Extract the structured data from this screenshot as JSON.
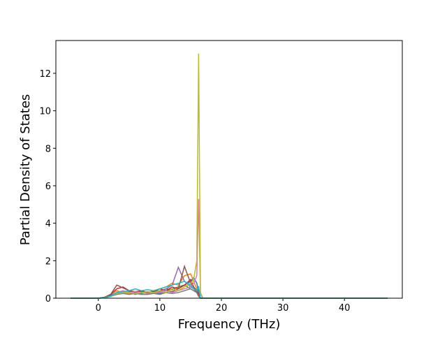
{
  "chart_data": {
    "type": "line",
    "xlabel": "Frequency (THz)",
    "ylabel": "Partial Density of States",
    "x": [
      -4.5,
      0,
      1,
      2,
      3,
      4,
      5,
      6,
      7,
      8,
      9,
      10,
      11,
      12,
      13,
      14,
      15,
      15.5,
      16,
      16.3,
      16.6,
      17,
      47
    ],
    "series": [
      {
        "color": "#1f77b4",
        "values": [
          0,
          0,
          0.05,
          0.15,
          0.3,
          0.35,
          0.3,
          0.25,
          0.3,
          0.35,
          0.3,
          0.25,
          0.4,
          0.5,
          0.6,
          0.7,
          0.9,
          1.1,
          0.8,
          0.3,
          0,
          0,
          0
        ]
      },
      {
        "color": "#ff7f0e",
        "values": [
          0,
          0,
          0.05,
          0.2,
          0.4,
          0.3,
          0.25,
          0.3,
          0.35,
          0.3,
          0.4,
          0.5,
          0.6,
          0.8,
          0.7,
          1.2,
          1.3,
          0.9,
          0.5,
          0.2,
          0,
          0,
          0
        ]
      },
      {
        "color": "#2ca02c",
        "values": [
          0,
          0,
          0.03,
          0.1,
          0.25,
          0.3,
          0.35,
          0.3,
          0.25,
          0.3,
          0.35,
          0.4,
          0.5,
          0.45,
          0.6,
          0.7,
          0.5,
          0.4,
          0.3,
          0.1,
          0,
          0,
          0
        ]
      },
      {
        "color": "#d62728",
        "values": [
          0,
          0,
          0.05,
          0.2,
          0.5,
          0.6,
          0.4,
          0.35,
          0.4,
          0.3,
          0.35,
          0.5,
          0.4,
          0.6,
          0.5,
          0.7,
          1.0,
          0.6,
          0.4,
          0.2,
          0,
          0,
          0
        ]
      },
      {
        "color": "#9467bd",
        "values": [
          0,
          0,
          0.02,
          0.1,
          0.3,
          0.4,
          0.3,
          0.2,
          0.3,
          0.25,
          0.3,
          0.35,
          0.5,
          0.7,
          1.65,
          0.9,
          0.6,
          0.5,
          0.3,
          0.1,
          0,
          0,
          0
        ]
      },
      {
        "color": "#8c564b",
        "values": [
          0,
          0,
          0.05,
          0.2,
          0.7,
          0.55,
          0.4,
          0.3,
          0.35,
          0.3,
          0.25,
          0.3,
          0.4,
          0.35,
          0.5,
          1.7,
          0.8,
          0.6,
          0.3,
          0.1,
          0,
          0,
          0
        ]
      },
      {
        "color": "#e377c2",
        "values": [
          0,
          0,
          0.02,
          0.1,
          0.3,
          0.4,
          0.3,
          0.35,
          0.3,
          0.25,
          0.3,
          0.3,
          0.4,
          0.3,
          0.4,
          0.5,
          0.6,
          0.8,
          1.2,
          5.3,
          0.2,
          0,
          0
        ]
      },
      {
        "color": "#7f7f7f",
        "values": [
          0,
          0,
          0.02,
          0.1,
          0.2,
          0.25,
          0.2,
          0.25,
          0.2,
          0.2,
          0.25,
          0.2,
          0.3,
          0.25,
          0.3,
          0.4,
          0.5,
          0.4,
          0.3,
          0.1,
          0,
          0,
          0
        ]
      },
      {
        "color": "#bcbd22",
        "values": [
          0,
          0,
          0.03,
          0.1,
          0.25,
          0.3,
          0.3,
          0.25,
          0.3,
          0.35,
          0.3,
          0.4,
          0.3,
          0.5,
          0.4,
          0.6,
          0.8,
          1.0,
          2.0,
          13.05,
          0.3,
          0,
          0
        ]
      },
      {
        "color": "#17becf",
        "values": [
          0,
          0,
          0.03,
          0.1,
          0.3,
          0.35,
          0.4,
          0.5,
          0.4,
          0.45,
          0.4,
          0.5,
          0.6,
          0.7,
          0.8,
          0.9,
          0.7,
          0.5,
          0.4,
          0.6,
          0,
          0,
          0
        ]
      }
    ],
    "xlim": [
      -6.9,
      49.4
    ],
    "xticks": [
      0,
      10,
      20,
      30,
      40
    ],
    "ylim": [
      0,
      13.75
    ],
    "yticks": [
      0,
      2,
      4,
      6,
      8,
      10,
      12
    ]
  }
}
